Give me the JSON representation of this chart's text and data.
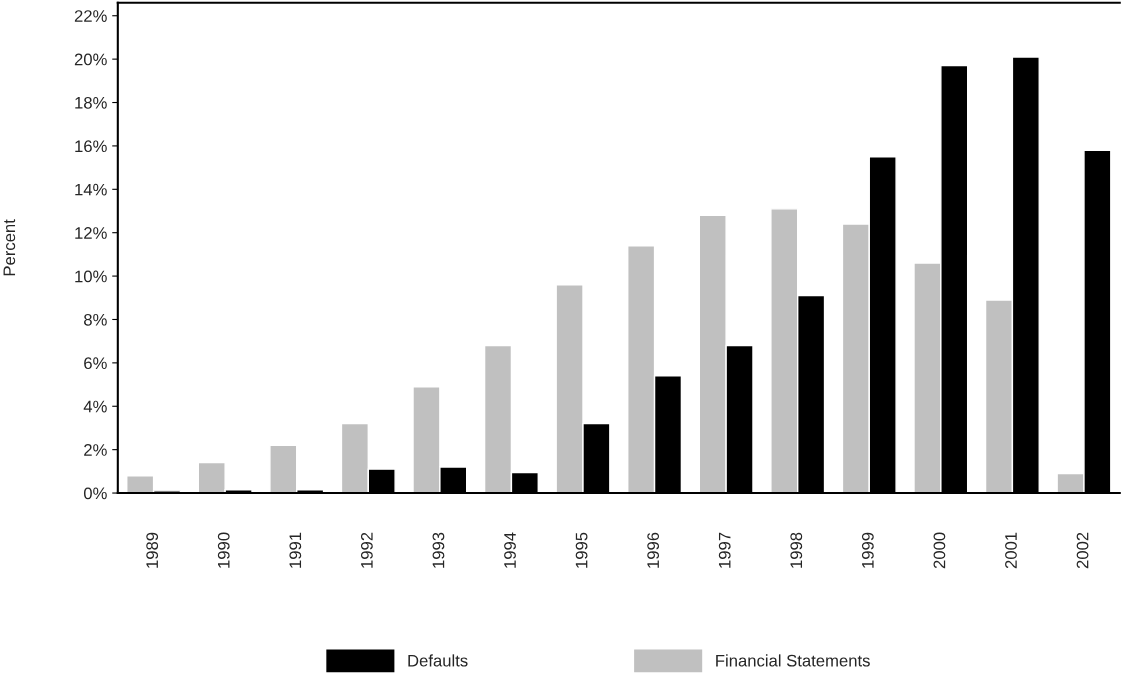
{
  "chart_data": {
    "type": "bar",
    "ylabel": "Percent",
    "categories": [
      "1989",
      "1990",
      "1991",
      "1992",
      "1993",
      "1994",
      "1995",
      "1996",
      "1997",
      "1998",
      "1999",
      "2000",
      "2001",
      "2002"
    ],
    "series": [
      {
        "name": "Financial Statements",
        "color": "#c0c0c0",
        "values": [
          0.8,
          1.4,
          2.2,
          3.2,
          4.9,
          6.8,
          9.6,
          11.4,
          12.8,
          13.1,
          12.4,
          10.6,
          8.9,
          0.9
        ]
      },
      {
        "name": "Defaults",
        "color": "#000000",
        "values": [
          0.1,
          0.15,
          0.15,
          1.1,
          1.2,
          0.95,
          3.2,
          5.4,
          6.8,
          9.1,
          15.5,
          19.7,
          20.1,
          15.8
        ]
      }
    ],
    "ylim": [
      0,
      22.6
    ],
    "yticks": [
      {
        "value": 0,
        "label": "0%"
      },
      {
        "value": 2,
        "label": "2%"
      },
      {
        "value": 4,
        "label": "4%"
      },
      {
        "value": 6,
        "label": "6%"
      },
      {
        "value": 8,
        "label": "8%"
      },
      {
        "value": 10,
        "label": "10%"
      },
      {
        "value": 12,
        "label": "12%"
      },
      {
        "value": 14,
        "label": "14%"
      },
      {
        "value": 16,
        "label": "16%"
      },
      {
        "value": 18,
        "label": "18%"
      },
      {
        "value": 20,
        "label": "20%"
      },
      {
        "value": 22,
        "label": "22%"
      }
    ],
    "grid": false,
    "legend": "bottom"
  }
}
